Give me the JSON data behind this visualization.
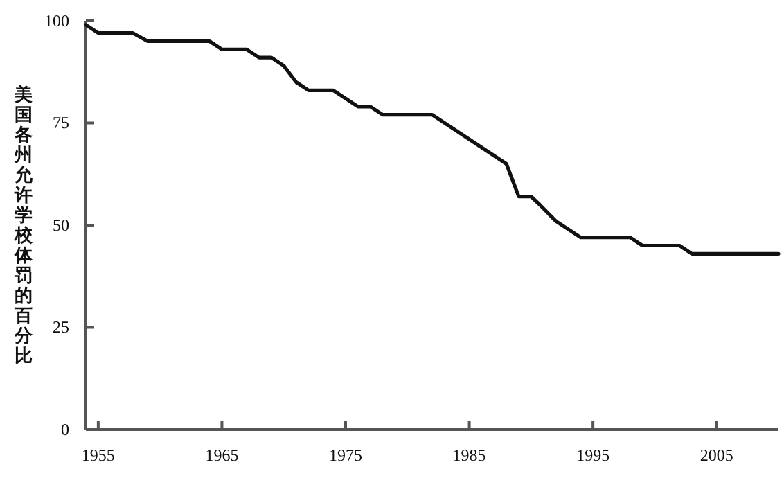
{
  "chart_data": {
    "type": "line",
    "ylabel": "美国各州允许学校体罚的百分比",
    "x": [
      1954,
      1955,
      1957.8,
      1959,
      1964,
      1965,
      1967,
      1968,
      1969,
      1970,
      1971,
      1972,
      1974,
      1976,
      1977,
      1978,
      1982,
      1988,
      1989,
      1990,
      1990.7,
      1992,
      1994,
      1998,
      1999,
      2002,
      2003,
      2010
    ],
    "series": [
      {
        "color": "#111111",
        "values": [
          99,
          97,
          97,
          95,
          95,
          93,
          93,
          91,
          91,
          89,
          85,
          83,
          83,
          79,
          79,
          77,
          77,
          65,
          57,
          57,
          55,
          51,
          47,
          47,
          45,
          45,
          43,
          43
        ]
      }
    ],
    "xlim": [
      1954,
      2010
    ],
    "xticks": [
      1955,
      1965,
      1975,
      1985,
      1995,
      2005
    ],
    "ylim": [
      0,
      100
    ],
    "yticks": [
      0,
      25,
      50,
      75,
      100
    ],
    "grid": false,
    "marker": "none",
    "line_style": "solid"
  }
}
